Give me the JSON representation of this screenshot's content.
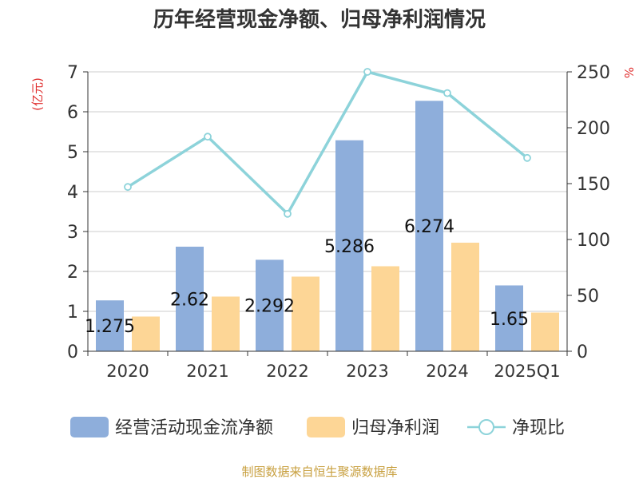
{
  "chart_data": {
    "type": "bar",
    "title": "历年经营现金净额、归母净利润情况",
    "categories": [
      "2020",
      "2021",
      "2022",
      "2023",
      "2024",
      "2025Q1"
    ],
    "left_axis": {
      "unit": "(亿元)",
      "ylim": [
        0,
        7
      ],
      "ticks": [
        "0",
        "1",
        "2",
        "3",
        "4",
        "5",
        "6",
        "7"
      ]
    },
    "right_axis": {
      "unit": "%",
      "ylim": [
        0,
        250
      ],
      "ticks": [
        "0",
        "50",
        "100",
        "150",
        "200",
        "250"
      ]
    },
    "series": [
      {
        "name": "经营活动现金流净额",
        "type": "bar",
        "axis": "left",
        "color": "#8eaedb",
        "values": [
          1.275,
          2.62,
          2.292,
          5.286,
          6.274,
          1.65
        ],
        "labels": [
          "1.275",
          "2.62",
          "2.292",
          "5.286",
          "6.274",
          "1.65"
        ]
      },
      {
        "name": "归母净利润",
        "type": "bar",
        "axis": "left",
        "color": "#fdd696",
        "values": [
          0.87,
          1.37,
          1.87,
          2.13,
          2.72,
          0.97
        ]
      },
      {
        "name": "净现比",
        "type": "line",
        "axis": "right",
        "color": "#8dd3da",
        "values": [
          147,
          192,
          123,
          250,
          231,
          173
        ]
      }
    ],
    "grid": true,
    "legend_position": "bottom"
  },
  "source": "制图数据来自恒生聚源数据库"
}
